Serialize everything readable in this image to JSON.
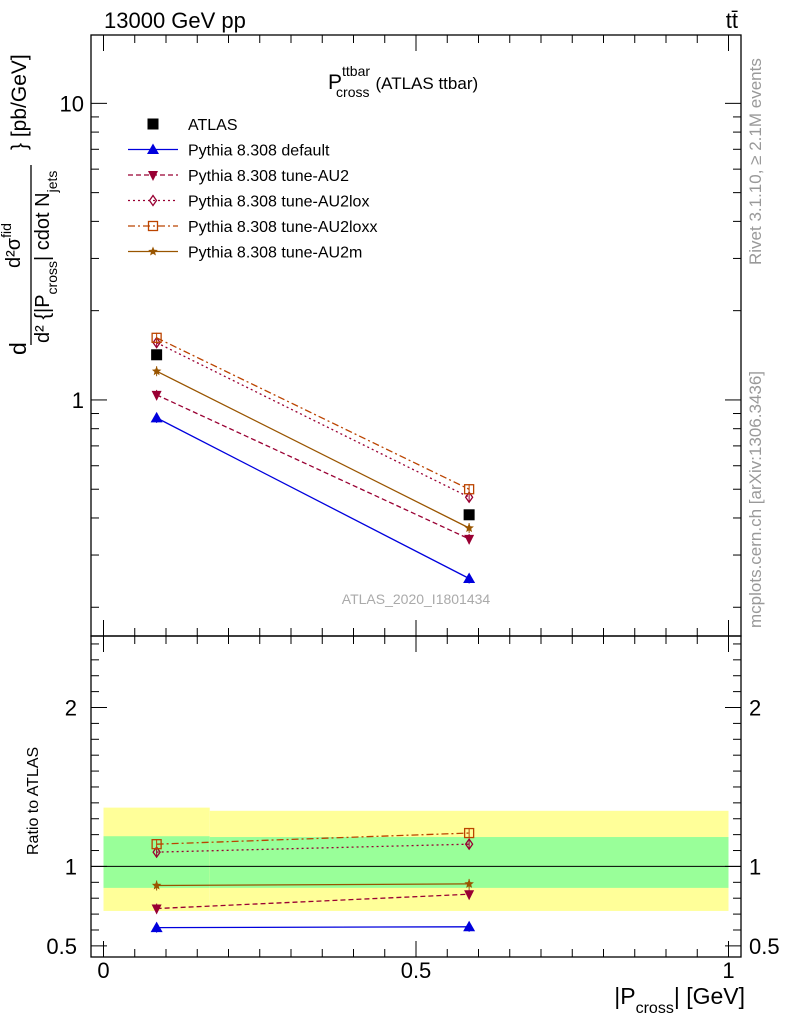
{
  "header": {
    "energy": "13000 GeV pp",
    "process": "tt̄"
  },
  "side_labels": {
    "rivet": "Rivet 3.1.10, ≥ 2.1M events",
    "mcplots": "mcplots.cern.ch [arXiv:1306.3436]"
  },
  "analysis_id": "ATLAS_2020_I1801434",
  "chart_data": [
    {
      "type": "line",
      "title_main": "P",
      "title_sup": "ttbar",
      "title_sub": "cross",
      "title_suffix": "(ATLAS ttbar)",
      "ylabel_pre": "d",
      "ylabel_frac_num": "d²σ",
      "ylabel_frac_num_sup": "fid",
      "ylabel_frac_den": "d² {|P",
      "ylabel_frac_den_sub": "cross",
      "ylabel_frac_den_mid": "| cdot N",
      "ylabel_frac_den_sub2": "jets",
      "ylabel_post": "} [pb/GeV]",
      "yscale": "log",
      "ylim": [
        0.16,
        17
      ],
      "xlim": [
        -0.02,
        1.02
      ],
      "yticks": [
        1,
        10
      ],
      "ytick_labels": [
        "1",
        "10"
      ],
      "legend_position": "top-left",
      "x": [
        0.085,
        0.585
      ],
      "series": [
        {
          "name": "ATLAS",
          "values": [
            1.42,
            0.41
          ],
          "color": "#000000",
          "marker": "square",
          "line": "none"
        },
        {
          "name": "Pythia 8.308 default",
          "values": [
            0.87,
            0.25
          ],
          "color": "#0000dd",
          "marker": "triangle-up",
          "line": "solid"
        },
        {
          "name": "Pythia 8.308 tune-AU2",
          "values": [
            1.04,
            0.34
          ],
          "color": "#990033",
          "marker": "triangle-down",
          "line": "dashed"
        },
        {
          "name": "Pythia 8.308 tune-AU2lox",
          "values": [
            1.56,
            0.47
          ],
          "color": "#990033",
          "marker": "diamond-open",
          "line": "dotted"
        },
        {
          "name": "Pythia 8.308 tune-AU2loxx",
          "values": [
            1.62,
            0.5
          ],
          "color": "#bb4400",
          "marker": "square-open",
          "line": "dashdot"
        },
        {
          "name": "Pythia 8.308 tune-AU2m",
          "values": [
            1.25,
            0.37
          ],
          "color": "#995500",
          "marker": "star",
          "line": "solid"
        }
      ]
    },
    {
      "type": "line",
      "ylabel": "Ratio to ATLAS",
      "xlabel_pre": "|P",
      "xlabel_sub": "cross",
      "xlabel_post": "| [GeV]",
      "ylim": [
        0.43,
        2.45
      ],
      "xlim": [
        -0.02,
        1.02
      ],
      "yticks": [
        0.5,
        1,
        2
      ],
      "ytick_labels": [
        "0.5",
        "1",
        "2"
      ],
      "xticks": [
        0,
        0.5,
        1
      ],
      "xtick_labels": [
        "0",
        "0.5",
        "1"
      ],
      "bands": {
        "edges": [
          0,
          0.17,
          1.0
        ],
        "inner": [
          [
            0.865,
            1.19
          ],
          [
            0.865,
            1.185
          ]
        ],
        "outer": [
          [
            0.72,
            1.37
          ],
          [
            0.72,
            1.35
          ]
        ],
        "inner_color": "#99ff99",
        "outer_color": "#ffff99"
      },
      "x": [
        0.085,
        0.585
      ],
      "series": [
        {
          "name": "Pythia 8.308 default",
          "values": [
            0.615,
            0.62
          ],
          "color": "#0000dd",
          "marker": "triangle-up",
          "line": "solid"
        },
        {
          "name": "Pythia 8.308 tune-AU2",
          "values": [
            0.735,
            0.825
          ],
          "color": "#990033",
          "marker": "triangle-down",
          "line": "dashed"
        },
        {
          "name": "Pythia 8.308 tune-AU2lox",
          "values": [
            1.09,
            1.14
          ],
          "color": "#990033",
          "marker": "diamond-open",
          "line": "dotted"
        },
        {
          "name": "Pythia 8.308 tune-AU2loxx",
          "values": [
            1.14,
            1.21
          ],
          "color": "#bb4400",
          "marker": "square-open",
          "line": "dashdot"
        },
        {
          "name": "Pythia 8.308 tune-AU2m",
          "values": [
            0.88,
            0.89
          ],
          "color": "#995500",
          "marker": "star",
          "line": "solid"
        }
      ]
    }
  ]
}
